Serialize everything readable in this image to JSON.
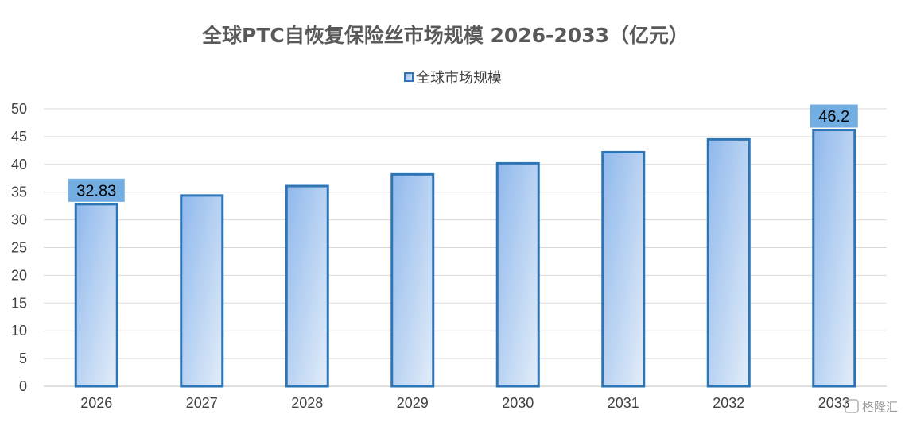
{
  "colors": {
    "bar_stroke": "#2e75b6",
    "bar_fill_top": "#8fb8ec",
    "bar_fill_bottom": "#e3edf9",
    "label_bg": "#73aee3",
    "grid": "#d9d9d9",
    "axis": "#bfbfbf"
  },
  "watermark": "格隆汇",
  "chart_data": {
    "type": "bar",
    "title": "全球PTC自恢复保险丝市场规模 2026-2033（亿元）",
    "xlabel": "",
    "ylabel": "",
    "categories": [
      "2026",
      "2027",
      "2028",
      "2029",
      "2030",
      "2031",
      "2032",
      "2033"
    ],
    "series": [
      {
        "name": "全球市场规模",
        "values": [
          32.83,
          34.4,
          36.1,
          38.2,
          40.2,
          42.2,
          44.5,
          46.2
        ],
        "data_labels": [
          "32.83",
          "",
          "",
          "",
          "",
          "",
          "",
          "46.2"
        ]
      }
    ],
    "ylim": [
      0,
      50
    ],
    "yticks": [
      0,
      5,
      10,
      15,
      20,
      25,
      30,
      35,
      40,
      45,
      50
    ],
    "grid": true,
    "legend": "top-center"
  }
}
